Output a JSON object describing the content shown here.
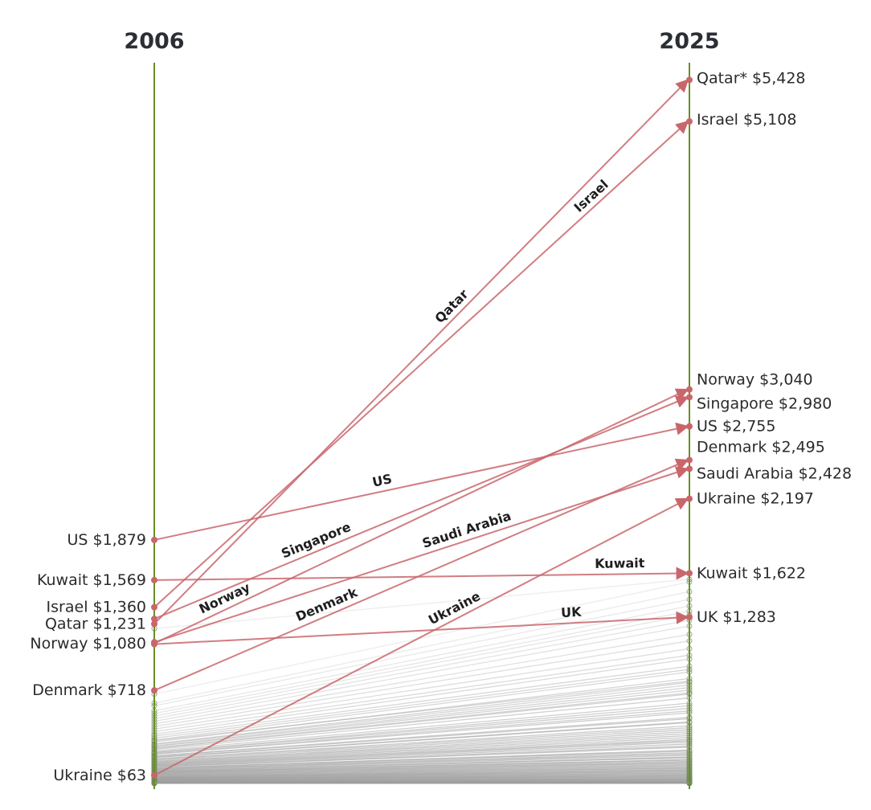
{
  "chart_data": {
    "type": "slope",
    "x": [
      "2006",
      "2025"
    ],
    "y_unit": "$",
    "highlight_color": "#c9666c",
    "background_color": "#9e9e9e",
    "axis_color": "#6b8e23",
    "highlighted": [
      {
        "name": "Qatar",
        "start": 1231,
        "end": 5428,
        "start_label": "Qatar $1,231",
        "end_label": "Qatar* $5,428"
      },
      {
        "name": "Israel",
        "start": 1360,
        "end": 5108,
        "start_label": "Israel $1,360",
        "end_label": "Israel $5,108"
      },
      {
        "name": "Norway",
        "start": 1080,
        "end": 3040,
        "start_label": "Norway $1,080",
        "end_label": "Norway $3,040"
      },
      {
        "name": "Singapore",
        "start": 1270,
        "end": 2980,
        "start_label": "",
        "end_label": "Singapore $2,980"
      },
      {
        "name": "US",
        "start": 1879,
        "end": 2755,
        "start_label": "US $1,879",
        "end_label": "US $2,755"
      },
      {
        "name": "Denmark",
        "start": 718,
        "end": 2495,
        "start_label": "Denmark $718",
        "end_label": "Denmark $2,495"
      },
      {
        "name": "Saudi Arabia",
        "start": 1090,
        "end": 2428,
        "start_label": "",
        "end_label": "Saudi Arabia $2,428"
      },
      {
        "name": "Ukraine",
        "start": 63,
        "end": 2197,
        "start_label": "Ukraine $63",
        "end_label": "Ukraine $2,197"
      },
      {
        "name": "Kuwait",
        "start": 1569,
        "end": 1622,
        "start_label": "Kuwait $1,569",
        "end_label": "Kuwait $1,622"
      },
      {
        "name": "UK",
        "start": 1075,
        "end": 1283,
        "start_label": "",
        "end_label": "UK $1,283"
      }
    ],
    "other_countries": [
      [
        1195,
        1575
      ],
      [
        690,
        1555
      ],
      [
        620,
        1480
      ],
      [
        600,
        1420
      ],
      [
        560,
        1370
      ],
      [
        540,
        1330
      ],
      [
        520,
        1300
      ],
      [
        500,
        1260
      ],
      [
        480,
        1215
      ],
      [
        460,
        1150
      ],
      [
        440,
        1100
      ],
      [
        420,
        1040
      ],
      [
        400,
        990
      ],
      [
        380,
        960
      ],
      [
        365,
        905
      ],
      [
        350,
        880
      ],
      [
        335,
        860
      ],
      [
        320,
        810
      ],
      [
        305,
        780
      ],
      [
        290,
        740
      ],
      [
        275,
        700
      ],
      [
        262,
        660
      ],
      [
        250,
        620
      ],
      [
        238,
        580
      ],
      [
        226,
        545
      ],
      [
        214,
        510
      ],
      [
        202,
        475
      ],
      [
        190,
        445
      ],
      [
        178,
        415
      ],
      [
        166,
        385
      ],
      [
        155,
        355
      ],
      [
        145,
        330
      ],
      [
        136,
        305
      ],
      [
        128,
        280
      ],
      [
        120,
        258
      ],
      [
        112,
        238
      ],
      [
        104,
        218
      ],
      [
        96,
        198
      ],
      [
        88,
        180
      ],
      [
        80,
        162
      ],
      [
        72,
        146
      ],
      [
        64,
        130
      ],
      [
        56,
        116
      ],
      [
        50,
        102
      ],
      [
        44,
        90
      ],
      [
        38,
        78
      ],
      [
        33,
        66
      ],
      [
        28,
        55
      ],
      [
        23,
        45
      ],
      [
        18,
        36
      ],
      [
        14,
        28
      ],
      [
        10,
        21
      ],
      [
        7,
        15
      ],
      [
        5,
        10
      ],
      [
        3,
        6
      ],
      [
        2,
        4
      ],
      [
        1,
        2
      ],
      [
        1,
        1
      ],
      [
        330,
        790
      ],
      [
        300,
        760
      ],
      [
        285,
        720
      ],
      [
        270,
        690
      ],
      [
        240,
        600
      ],
      [
        230,
        560
      ],
      [
        210,
        500
      ],
      [
        200,
        470
      ],
      [
        185,
        430
      ],
      [
        170,
        400
      ],
      [
        160,
        370
      ],
      [
        150,
        340
      ],
      [
        140,
        320
      ],
      [
        130,
        290
      ],
      [
        118,
        250
      ],
      [
        108,
        228
      ],
      [
        98,
        205
      ],
      [
        90,
        185
      ],
      [
        84,
        170
      ],
      [
        76,
        155
      ],
      [
        68,
        138
      ],
      [
        60,
        122
      ],
      [
        52,
        108
      ],
      [
        46,
        95
      ],
      [
        40,
        82
      ],
      [
        35,
        70
      ],
      [
        30,
        60
      ],
      [
        25,
        50
      ],
      [
        20,
        40
      ],
      [
        16,
        32
      ],
      [
        12,
        24
      ],
      [
        9,
        18
      ],
      [
        6,
        12
      ],
      [
        4,
        8
      ],
      [
        3,
        5
      ],
      [
        2,
        3
      ]
    ]
  }
}
